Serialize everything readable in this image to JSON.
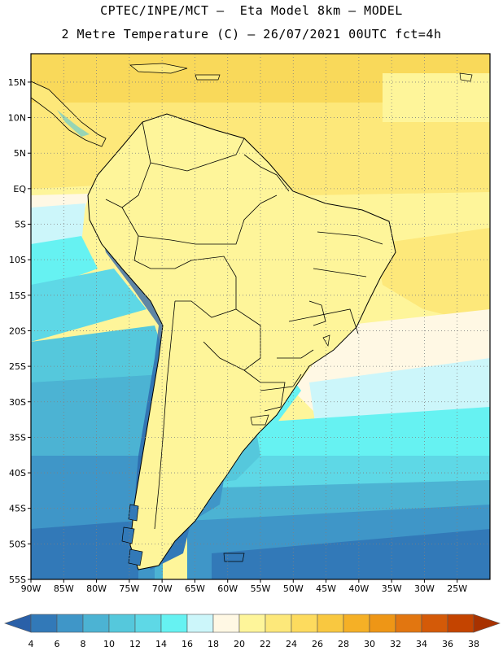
{
  "title_line1": "CPTEC/INPE/MCT –  Eta Model 8km – MODEL",
  "title_line2": "2 Metre Temperature (C) – 26/07/2021 00UTC fct=4h",
  "map": {
    "lat_labels": [
      "15N",
      "10N",
      "5N",
      "EQ",
      "5S",
      "10S",
      "15S",
      "20S",
      "25S",
      "30S",
      "35S",
      "40S",
      "45S",
      "50S",
      "55S"
    ],
    "lon_labels": [
      "90W",
      "85W",
      "80W",
      "75W",
      "70W",
      "65W",
      "60W",
      "55W",
      "50W",
      "45W",
      "40W",
      "35W",
      "30W",
      "25W"
    ],
    "domain": {
      "lon_min": -90,
      "lon_max": -20,
      "lat_min": -55,
      "lat_max": 19
    },
    "grid": "dotted"
  },
  "colorbar": {
    "labels": [
      "4",
      "6",
      "8",
      "10",
      "12",
      "14",
      "16",
      "18",
      "20",
      "22",
      "24",
      "26",
      "28",
      "30",
      "32",
      "34",
      "36",
      "38"
    ],
    "colors": [
      "#2a60a8",
      "#3279b8",
      "#3f96c8",
      "#4cb3d3",
      "#55c8dc",
      "#5ed8e6",
      "#66f2f2",
      "#ccf6fa",
      "#fff8e4",
      "#fef59a",
      "#fde87a",
      "#fddb5e",
      "#f9c840",
      "#f5b026",
      "#ee9616",
      "#e27610",
      "#d45a08",
      "#c44400",
      "#a83200"
    ]
  }
}
